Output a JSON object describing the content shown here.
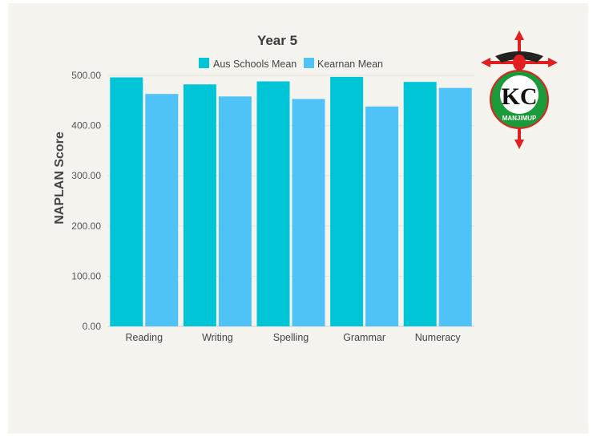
{
  "chart_data": {
    "type": "bar",
    "title": "Year 5",
    "ylabel": "NAPLAN Score",
    "xlabel": "",
    "categories": [
      "Reading",
      "Writing",
      "Spelling",
      "Grammar",
      "Numeracy"
    ],
    "series": [
      {
        "name": "Aus Schools Mean",
        "color": "#00c5d7",
        "values": [
          496,
          482,
          488,
          497,
          487
        ]
      },
      {
        "name": "Kearnan Mean",
        "color": "#4fc3f7",
        "values": [
          463,
          458,
          453,
          438,
          475
        ]
      }
    ],
    "ylim": [
      0,
      500
    ],
    "yticks": [
      "0.00",
      "100.00",
      "200.00",
      "300.00",
      "400.00",
      "500.00"
    ],
    "grid": true,
    "legend_position": "top"
  },
  "logo": {
    "name": "kc-manjimup-crest",
    "letters": "KC",
    "town": "MANJIMUP",
    "colors": {
      "cross": "#e02020",
      "ring": "#1b9a3a"
    }
  }
}
